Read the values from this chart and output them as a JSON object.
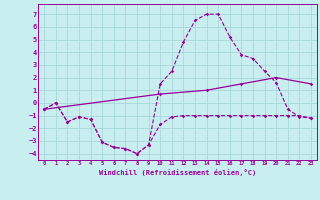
{
  "xlabel": "Windchill (Refroidissement éolien,°C)",
  "xlim": [
    -0.5,
    23.5
  ],
  "ylim": [
    -4.5,
    7.8
  ],
  "yticks": [
    -4,
    -3,
    -2,
    -1,
    0,
    1,
    2,
    3,
    4,
    5,
    6,
    7
  ],
  "xticks": [
    0,
    1,
    2,
    3,
    4,
    5,
    6,
    7,
    8,
    9,
    10,
    11,
    12,
    13,
    14,
    15,
    16,
    17,
    18,
    19,
    20,
    21,
    22,
    23
  ],
  "background_color": "#c8eef0",
  "grid_color": "#a8d8da",
  "line_color": "#990099",
  "series": {
    "line1_x": [
      0,
      1,
      2,
      3,
      4,
      5,
      6,
      7,
      8,
      9,
      10,
      11,
      12,
      13,
      14,
      15,
      16,
      17,
      18,
      19,
      20,
      21,
      22,
      23
    ],
    "line1_y": [
      -0.5,
      0.0,
      -1.5,
      -1.1,
      -1.3,
      -3.1,
      -3.5,
      -3.6,
      -4.0,
      -3.3,
      -1.7,
      -1.1,
      -1.0,
      -1.0,
      -1.0,
      -1.0,
      -1.0,
      -1.0,
      -1.0,
      -1.0,
      -1.0,
      -1.0,
      -1.0,
      -1.2
    ],
    "line2_x": [
      0,
      1,
      2,
      3,
      4,
      5,
      6,
      7,
      8,
      9,
      10,
      11,
      12,
      13,
      14,
      15,
      16,
      17,
      18,
      19,
      20,
      21,
      22,
      23
    ],
    "line2_y": [
      -0.5,
      0.0,
      -1.5,
      -1.1,
      -1.3,
      -3.1,
      -3.5,
      -3.6,
      -4.0,
      -3.3,
      1.5,
      2.5,
      4.8,
      6.5,
      7.0,
      7.0,
      5.2,
      3.8,
      3.5,
      2.5,
      1.6,
      -0.5,
      -1.1,
      -1.2
    ],
    "line3_x": [
      0,
      10,
      14,
      17,
      20,
      23
    ],
    "line3_y": [
      -0.5,
      0.7,
      1.0,
      1.5,
      2.0,
      1.5
    ]
  }
}
